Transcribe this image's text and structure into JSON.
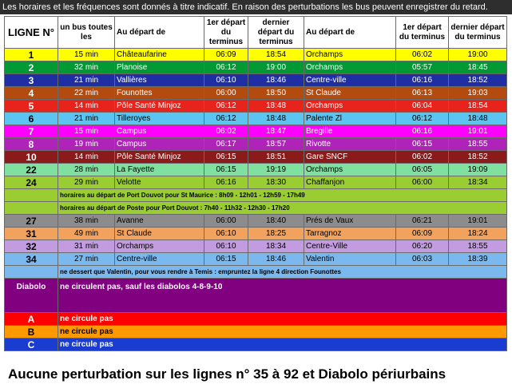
{
  "notice": "Les horaires et les fréquences sont donnés à titre indicatif. En raison des perturbations les bus peuvent enregistrer du retard.",
  "headers": {
    "ligne": "LIGNE N°",
    "freq": "un bus toutes les",
    "depart": "Au départ de",
    "first": "1er départ du terminus",
    "last": "dernier départ du terminus",
    "depart2": "Au départ de",
    "first2": "1er départ du terminus",
    "last2": "dernier départ du terminus"
  },
  "rows": [
    {
      "line": "1",
      "freq": "15 min",
      "from": "Châteaufarine",
      "f1": "06:09",
      "l1": "18:54",
      "to": "Orchamps",
      "f2": "06:02",
      "l2": "19:00"
    },
    {
      "line": "2",
      "freq": "32 min",
      "from": "Planoise",
      "f1": "06:12",
      "l1": "19:00",
      "to": "Orchamps",
      "f2": "05:57",
      "l2": "18:45"
    },
    {
      "line": "3",
      "freq": "21 min",
      "from": "Vallières",
      "f1": "06:10",
      "l1": "18:46",
      "to": "Centre-ville",
      "f2": "06:16",
      "l2": "18:52"
    },
    {
      "line": "4",
      "freq": "22 min",
      "from": "Founottes",
      "f1": "06:00",
      "l1": "18:50",
      "to": "St Claude",
      "f2": "06:13",
      "l2": "19:03"
    },
    {
      "line": "5",
      "freq": "14 min",
      "from": "Pôle Santé Minjoz",
      "f1": "06:12",
      "l1": "18:48",
      "to": "Orchamps",
      "f2": "06:04",
      "l2": "18:54"
    },
    {
      "line": "6",
      "freq": "21 min",
      "from": "Tilleroyes",
      "f1": "06:12",
      "l1": "18:48",
      "to": "Palente Zl",
      "f2": "06:12",
      "l2": "18:48"
    },
    {
      "line": "7",
      "freq": "15 min",
      "from": "Campus",
      "f1": "06:02",
      "l1": "18:47",
      "to": "Bregille",
      "f2": "06:16",
      "l2": "19:01"
    },
    {
      "line": "8",
      "freq": "19 min",
      "from": "Campus",
      "f1": "06:17",
      "l1": "18:57",
      "to": "Rivotte",
      "f2": "06:15",
      "l2": "18:55"
    },
    {
      "line": "10",
      "freq": "14 min",
      "from": "Pôle Santé Minjoz",
      "f1": "06:15",
      "l1": "18:51",
      "to": "Gare SNCF",
      "f2": "06:02",
      "l2": "18:52"
    },
    {
      "line": "22",
      "freq": "28 min",
      "from": "La Fayette",
      "f1": "06:15",
      "l1": "19:19",
      "to": "Orchamps",
      "f2": "06:05",
      "l2": "19:09"
    },
    {
      "line": "24",
      "freq": "29 min",
      "from": "Velotte",
      "f1": "06:16",
      "l1": "18:30",
      "to": "Chaffanjon",
      "f2": "06:00",
      "l2": "18:34"
    },
    {
      "line": "27",
      "freq": "38 min",
      "from": "Avanne",
      "f1": "06:00",
      "l1": "18:40",
      "to": "Prés de Vaux",
      "f2": "06:21",
      "l2": "19:01"
    },
    {
      "line": "31",
      "freq": "49 min",
      "from": "St Claude",
      "f1": "06:10",
      "l1": "18:25",
      "to": "Tarragnoz",
      "f2": "06:09",
      "l2": "18:24"
    },
    {
      "line": "32",
      "freq": "31 min",
      "from": "Orchamps",
      "f1": "06:10",
      "l1": "18:34",
      "to": "Centre-Ville",
      "f2": "06:20",
      "l2": "18:55"
    },
    {
      "line": "34",
      "freq": "27 min",
      "from": "Centre-ville",
      "f1": "06:15",
      "l1": "18:46",
      "to": "Valentin",
      "f2": "06:03",
      "l2": "18:39"
    }
  ],
  "notes": {
    "l24a": "horaires au départ de Port Douvot pour St Maurice : 8h09 - 12h01 - 12h59 - 17h49",
    "l24b": "horaires au départ de Poste pour Port Douvot : 7h40 - 11h32 - 12h30 - 17h20",
    "l34": "ne dessert que Valentin, pour vous rendre à Temis : empruntez la ligne 4 direction Founottes"
  },
  "diabolo": {
    "label": "Diabolo",
    "text": "ne circulent pas, sauf les diabolos 4-8-9-10"
  },
  "abc": [
    {
      "line": "A",
      "text": "ne circule pas"
    },
    {
      "line": "B",
      "text": "ne circule pas"
    },
    {
      "line": "C",
      "text": "ne circule pas"
    }
  ],
  "footer": "Aucune perturbation sur les lignes n° 35 à 92 et Diabolo périurbains",
  "colors": {
    "1": "#ffff00",
    "2": "#009933",
    "3": "#1f2fa3",
    "4": "#b34b0f",
    "5": "#e8231b",
    "6": "#5bc4f1",
    "7": "#ff00ff",
    "8": "#b023b8",
    "10": "#8b1a1a",
    "22": "#7fe0a0",
    "24": "#9acd32",
    "27": "#8c8c8c",
    "31": "#f2a25c",
    "32": "#c39be0",
    "34": "#7ab8ee",
    "diabolo": "#800080",
    "A": "#ff0000",
    "B": "#ff9900",
    "C": "#1a3ccf"
  }
}
